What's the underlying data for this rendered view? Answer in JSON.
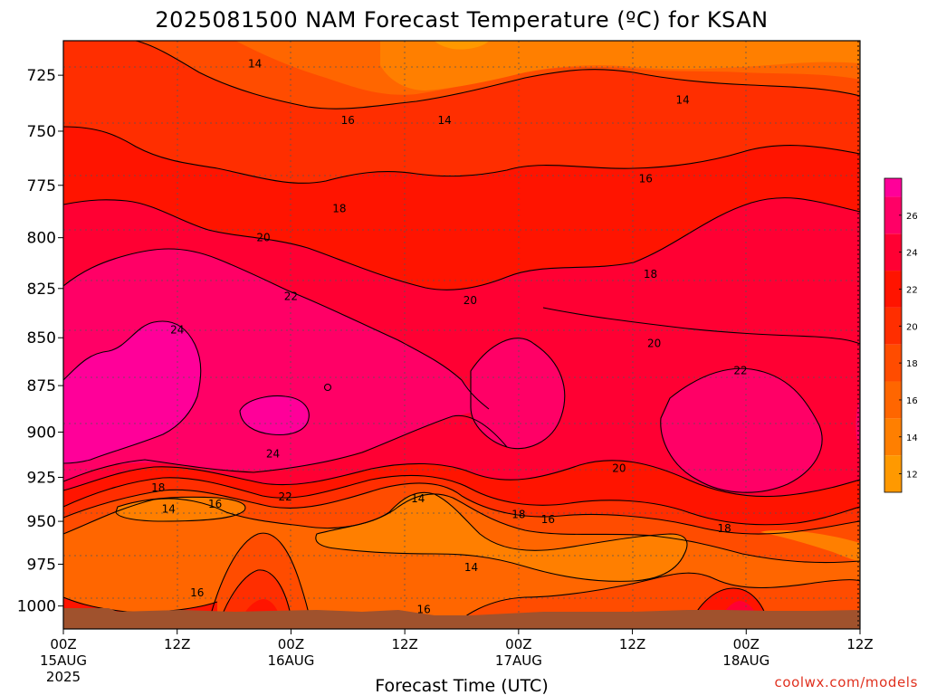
{
  "chart_data": {
    "type": "heatmap",
    "title": "2025081500 NAM Forecast Temperature (ºC) for KSAN",
    "xlabel": "Forecast Time (UTC)",
    "ylabel": "",
    "credit": "coolwx.com/models",
    "x_ticks": [
      {
        "hour": 0,
        "line1": "00Z",
        "line2": "15AUG",
        "line3": "2025"
      },
      {
        "hour": 12,
        "line1": "12Z",
        "line2": "",
        "line3": ""
      },
      {
        "hour": 24,
        "line1": "00Z",
        "line2": "16AUG",
        "line3": ""
      },
      {
        "hour": 36,
        "line1": "12Z",
        "line2": "",
        "line3": ""
      },
      {
        "hour": 48,
        "line1": "00Z",
        "line2": "17AUG",
        "line3": ""
      },
      {
        "hour": 60,
        "line1": "12Z",
        "line2": "",
        "line3": ""
      },
      {
        "hour": 72,
        "line1": "00Z",
        "line2": "18AUG",
        "line3": ""
      },
      {
        "hour": 84,
        "line1": "12Z",
        "line2": "",
        "line3": ""
      }
    ],
    "xlim": [
      0,
      84
    ],
    "ylim": [
      1014,
      710
    ],
    "y_ticks": [
      "725",
      "750",
      "775",
      "800",
      "825",
      "850",
      "875",
      "900",
      "925",
      "950",
      "975",
      "1000"
    ],
    "grid": true,
    "colorbar": {
      "labels": [
        "26",
        "24",
        "22",
        "20",
        "18",
        "16",
        "14",
        "12"
      ],
      "levels": [
        11,
        12,
        13,
        14,
        15,
        16,
        17,
        18,
        19,
        20,
        21,
        22,
        23,
        24,
        25,
        26,
        27,
        28
      ],
      "colors": [
        "#FF9900",
        "#FF7F00",
        "#FF6600",
        "#FF4C00",
        "#FF2E00",
        "#FF1400",
        "#FF0033",
        "#FF0066",
        "#FF0099"
      ]
    },
    "contour_labels": [
      {
        "text": "14",
        "t": 20.2,
        "p": 720
      },
      {
        "text": "14",
        "t": 40.2,
        "p": 745
      },
      {
        "text": "14",
        "t": 65.3,
        "p": 736
      },
      {
        "text": "16",
        "t": 30.0,
        "p": 745
      },
      {
        "text": "16",
        "t": 61.4,
        "p": 772
      },
      {
        "text": "18",
        "t": 29.1,
        "p": 786
      },
      {
        "text": "18",
        "t": 61.9,
        "p": 818
      },
      {
        "text": "20",
        "t": 21.1,
        "p": 800
      },
      {
        "text": "20",
        "t": 42.9,
        "p": 831
      },
      {
        "text": "20",
        "t": 62.3,
        "p": 853
      },
      {
        "text": "22",
        "t": 24.0,
        "p": 829
      },
      {
        "text": "22",
        "t": 71.4,
        "p": 867
      },
      {
        "text": "24",
        "t": 12.0,
        "p": 846
      },
      {
        "text": "24",
        "t": 22.1,
        "p": 912
      },
      {
        "text": "22",
        "t": 23.4,
        "p": 936
      },
      {
        "text": "20",
        "t": 58.6,
        "p": 920
      },
      {
        "text": "18",
        "t": 10.0,
        "p": 931
      },
      {
        "text": "16",
        "t": 16.0,
        "p": 940
      },
      {
        "text": "14",
        "t": 11.1,
        "p": 943
      },
      {
        "text": "14",
        "t": 37.4,
        "p": 937
      },
      {
        "text": "18",
        "t": 48.0,
        "p": 946
      },
      {
        "text": "16",
        "t": 51.1,
        "p": 949
      },
      {
        "text": "18",
        "t": 69.7,
        "p": 954
      },
      {
        "text": "14",
        "t": 43.0,
        "p": 977
      },
      {
        "text": "16",
        "t": 14.1,
        "p": 992
      },
      {
        "text": "16",
        "t": 38.0,
        "p": 1002
      }
    ],
    "colors": {
      "terrain": "#A0522D",
      "contour": "#000000",
      "grid": "#555555"
    }
  }
}
